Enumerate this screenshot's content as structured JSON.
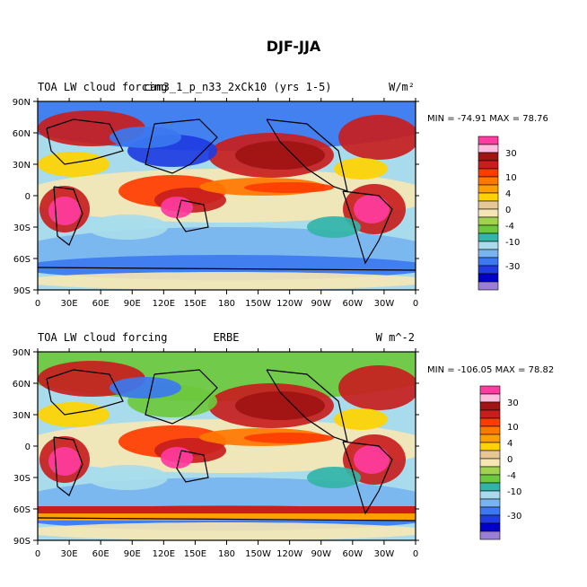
{
  "figure_title": "DJF-JJA",
  "colors": {
    "levels": [
      "#9b7fd6",
      "#0000c8",
      "#1e3ce1",
      "#3c78f0",
      "#78b4f0",
      "#a8dcec",
      "#33b4a8",
      "#6cc83c",
      "#a0d250",
      "#f5e6b4",
      "#e6c896",
      "#ffd200",
      "#ffa000",
      "#ff7800",
      "#ff3c00",
      "#c81e1e",
      "#a01414",
      "#ffbede",
      "#ff3ca0"
    ]
  },
  "chart_data": [
    {
      "type": "heatmap",
      "title": "TOA LW cloud forcing",
      "case": "cam3_1_p_n33_2xCk10 (yrs 1-5)",
      "units": "W/m²",
      "min": -74.91,
      "max": 78.76,
      "stats_text": "MIN = -74.91 MAX =  78.76",
      "xticks": [
        "0",
        "30E",
        "60E",
        "90E",
        "120E",
        "150E",
        "180",
        "150W",
        "120W",
        "90W",
        "60W",
        "30W",
        "0"
      ],
      "yticks": [
        "90N",
        "60N",
        "30N",
        "0",
        "30S",
        "60S",
        "90S"
      ],
      "colorbar_labels": [
        "30",
        "10",
        "4",
        "0",
        "-4",
        "-10",
        "-30"
      ],
      "xlim": [
        0,
        360
      ],
      "ylim": [
        -90,
        90
      ]
    },
    {
      "type": "heatmap",
      "title": "TOA LW cloud forcing",
      "case": "ERBE",
      "units": "W m^-2",
      "min": -106.05,
      "max": 78.82,
      "stats_text": "MIN = -106.05 MAX =  78.82",
      "xticks": [
        "0",
        "30E",
        "60E",
        "90E",
        "120E",
        "150E",
        "180",
        "150W",
        "120W",
        "90W",
        "60W",
        "30W",
        "0"
      ],
      "yticks": [
        "90N",
        "60N",
        "30N",
        "0",
        "30S",
        "60S",
        "90S"
      ],
      "colorbar_labels": [
        "30",
        "10",
        "4",
        "0",
        "-4",
        "-10",
        "-30"
      ],
      "xlim": [
        0,
        360
      ],
      "ylim": [
        -90,
        90
      ]
    }
  ]
}
